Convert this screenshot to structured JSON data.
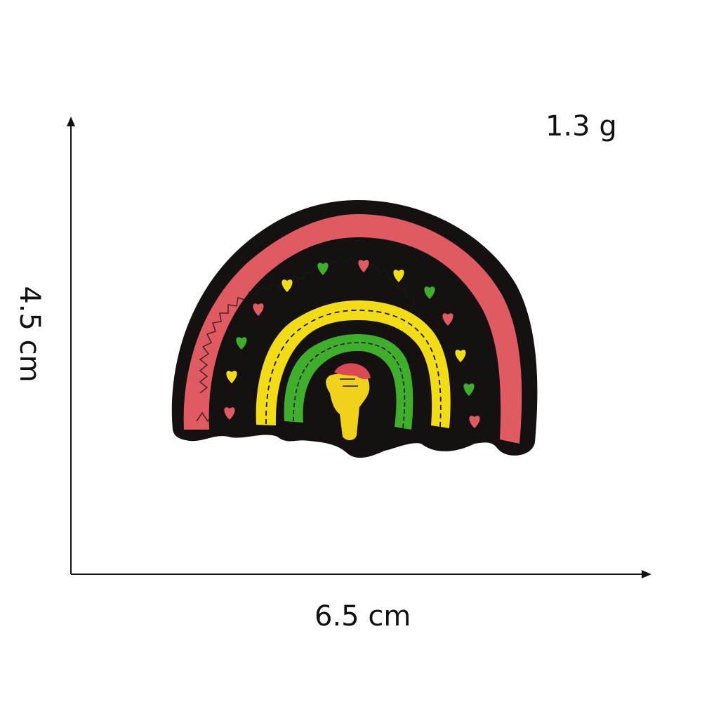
{
  "labels": {
    "weight": "1.3 g",
    "width": "6.5 cm",
    "height": "4.5 cm"
  },
  "patch": {
    "colors": {
      "backing": "#151111",
      "outer_band": "#e05a62",
      "yellow_band": "#f2dc16",
      "green_band": "#3fae2a",
      "fist": "#f0d21a",
      "fist_cuff": "#d94a55"
    }
  },
  "axis_color": "#111111"
}
